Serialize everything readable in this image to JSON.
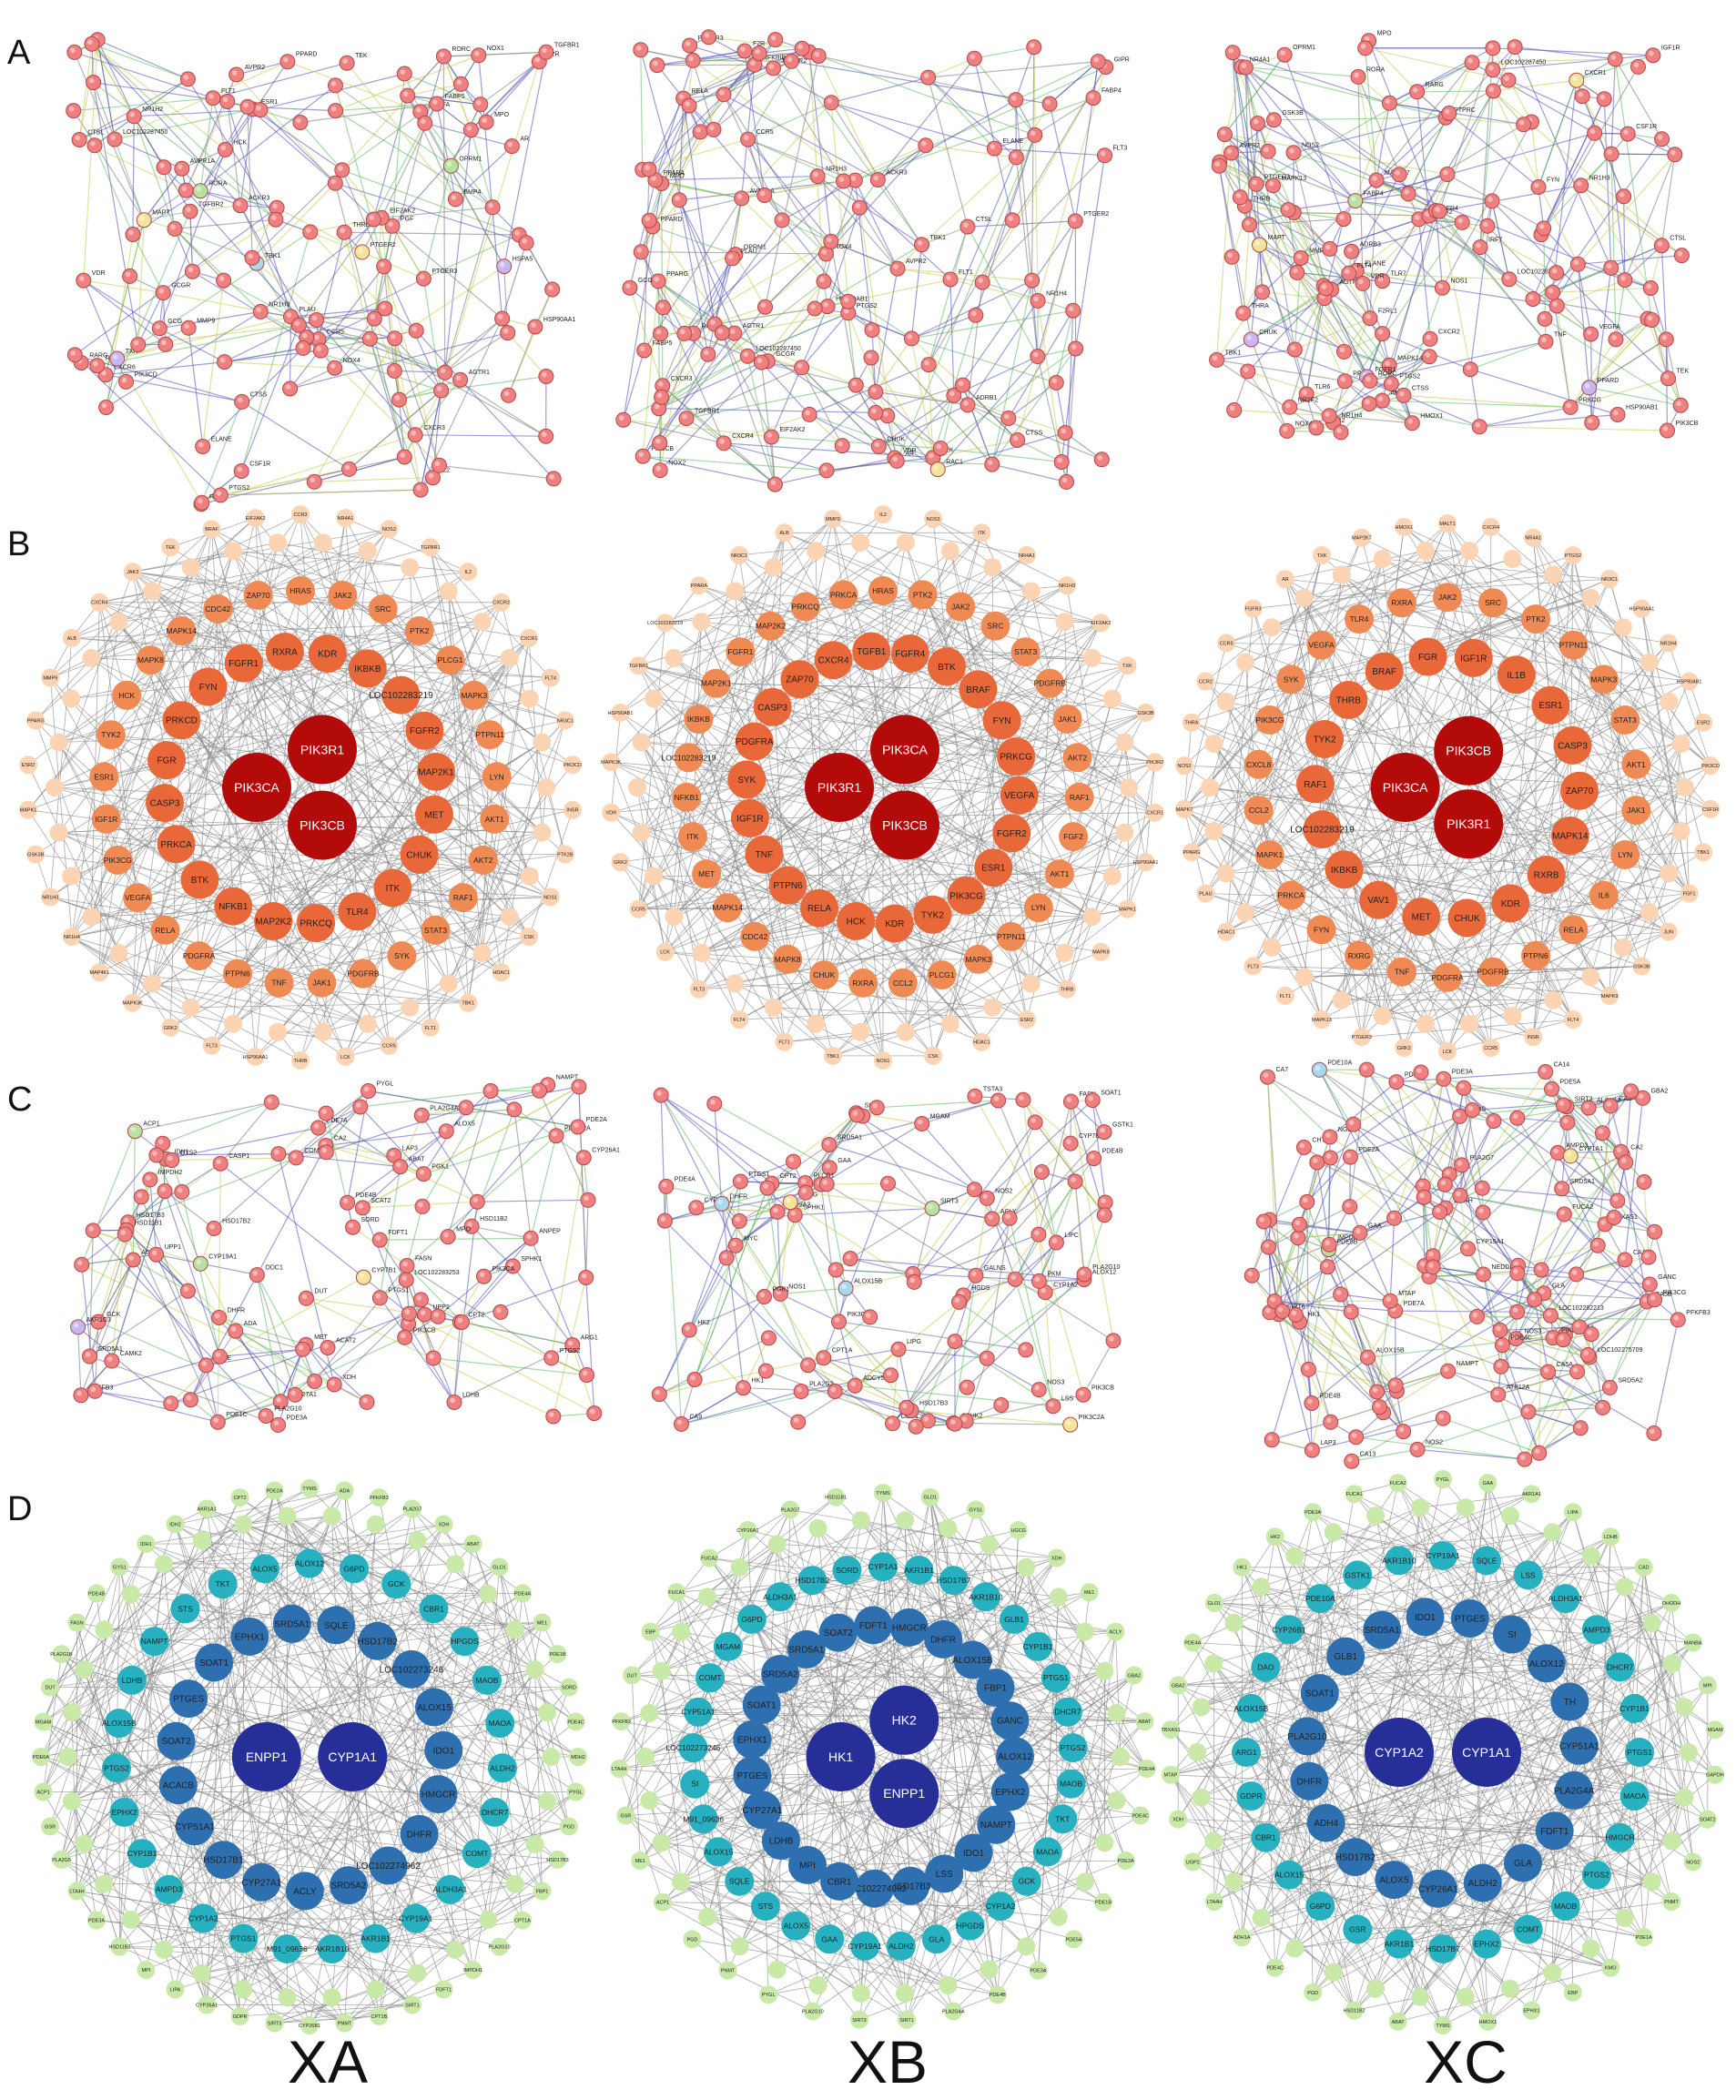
{
  "panels": {
    "A": {
      "letter": "A",
      "XA": {
        "labels": [
          "AVPR1A",
          "AVPR2",
          "CXCR3",
          "CXCR6",
          "LOC102287450",
          "OPRM1",
          "ACKR3",
          "CCR5",
          "TBK1",
          "PGF",
          "PIK3CD",
          "RORC",
          "FLT1",
          "TEK",
          "CSF1R",
          "AGTR1",
          "F2R",
          "CTSS",
          "CTSL",
          "MPO",
          "ELANE",
          "IL2",
          "VEGFA",
          "PLAU",
          "THRB",
          "MMP9",
          "PPARD",
          "FABP5",
          "RARG",
          "NR1H3",
          "RXRG",
          "NR1H2",
          "VDR",
          "RORA",
          "PTGER3",
          "GCGR",
          "GCG",
          "ESR1",
          "RAC1",
          "TGFBR1",
          "TGFBR2",
          "BMP4",
          "PTGS2",
          "NOX4",
          "NOX1",
          "EIF2AK2",
          "MAPT",
          "HSPA5",
          "HSP90AA1",
          "AR",
          "PTGER2",
          "TXK",
          "HCK"
        ]
      },
      "XB": {
        "labels": [
          "AVPR1A",
          "AVPR2",
          "ADRB1",
          "LOC102287450",
          "CXCR4",
          "OPRM1",
          "CXCR3",
          "CCR5",
          "AGTR1",
          "F2R",
          "NOX4",
          "CTSS",
          "CTSL",
          "ELANE",
          "MPO",
          "NR1H4",
          "ACKR3",
          "TGFBR1",
          "TGFBR2",
          "TEK",
          "PPARG",
          "PTGS2",
          "FABP4",
          "PLAU",
          "RARB",
          "VDR",
          "PPARD",
          "NFKBIB",
          "TBK1",
          "PPARA",
          "FABP5",
          "PTGER3",
          "PTGER2",
          "GIPR",
          "GCG",
          "GCGR",
          "HSP90AB1",
          "AR",
          "RAC1",
          "NOX2",
          "NR1H3",
          "EIF2AK2",
          "FLT3",
          "FLT1",
          "RELA",
          "CHUK",
          "PIK3CB"
        ]
      },
      "XC": {
        "labels": [
          "AGTR1",
          "OPRM1",
          "AVPR2",
          "ADRB3",
          "F2RL1",
          "LOC102287450",
          "CXCR1",
          "CXCR2",
          "PTGS2",
          "PTGER2",
          "PTGER3",
          "TLR6",
          "TLR7",
          "NOX4",
          "HMOX1",
          "CHUK",
          "TBK1",
          "TNF",
          "ELANE",
          "NR0B2",
          "MPO",
          "FABP4",
          "RARG",
          "PPARD",
          "VDR",
          "NR1H4",
          "NR1H3",
          "MAPK14",
          "MAPK13",
          "MAP2K7",
          "MAPT",
          "GSK3B",
          "NOS1",
          "NOS2",
          "HSP90AB1",
          "PRKCG",
          "AR",
          "PPARA",
          "NR2F2",
          "MMP9",
          "THRB",
          "THRA",
          "FGFR4",
          "FGFR1",
          "LOC102283219",
          "IRF7",
          "NR4A1",
          "RORA",
          "RORC",
          "CTSL",
          "CTSS",
          "VEGFA",
          "CSF1R",
          "IGF1R",
          "FLT4",
          "TEK",
          "PTPRC",
          "PIK3CB",
          "FYN"
        ]
      }
    },
    "B": {
      "letter": "B",
      "XA": {
        "hubs": [
          "PIK3CA",
          "PIK3R1",
          "PIK3CB"
        ],
        "mid": [
          "HRAS",
          "JAK2",
          "SRC",
          "PTK2",
          "PLCG1",
          "MAPK3",
          "PTPN11",
          "LYN",
          "AKT1",
          "AKT2",
          "RAF1",
          "STAT3",
          "SYK",
          "PDGFRB",
          "JAK1",
          "TNF",
          "PTPN6",
          "PDGFRA",
          "RELA",
          "VEGFA",
          "PIK3CG",
          "IGF1R",
          "ESR1",
          "TYK2",
          "HCK",
          "MAPK8",
          "MAPK14",
          "CDC42",
          "ZAP70",
          "KDR",
          "IKBKB",
          "LOC102283219",
          "FGFR2",
          "MAP2K1",
          "MET",
          "CHUK",
          "ITK",
          "TLR4",
          "PRKCQ",
          "MAP2K2",
          "NFKB1",
          "BTK",
          "PRKCA",
          "CASP3",
          "FGR",
          "PRKCD",
          "FYN",
          "FGFR1",
          "RXRA"
        ],
        "outer": [
          "CCR3",
          "NR4A1",
          "NOS2",
          "TGFBR1",
          "IL2",
          "CXCR2",
          "CXCR1",
          "FLT4",
          "NR3C1",
          "PIK3CD",
          "INSR",
          "PTK2B",
          "NOS1",
          "CSK",
          "HDAC1",
          "TBK1",
          "FLT1",
          "CCR5",
          "LCK",
          "THRB",
          "HSP90AA1",
          "FLT3",
          "GRK2",
          "MAPK3K",
          "MAP4K1",
          "NR1H4",
          "NR1H3",
          "GSK3B",
          "MAPK1",
          "ESR2",
          "PPARG",
          "MMP9",
          "ALB",
          "CXCR4",
          "JAK3",
          "TEK",
          "BRAF",
          "EIF2AK2"
        ]
      },
      "XB": {
        "hubs": [
          "PIK3R1",
          "PIK3CA",
          "PIK3CB"
        ],
        "mid": [
          "HRAS",
          "PTK2",
          "JAK2",
          "SRC",
          "STAT3",
          "PDGFRB",
          "JAK1",
          "AKT2",
          "RAF1",
          "FGF2",
          "AKT1",
          "LYN",
          "PTPN11",
          "MAPK3",
          "PLCG1",
          "CCL2",
          "RXRA",
          "CHUK",
          "MAPK8",
          "CDC42",
          "MAPK14",
          "MET",
          "ITK",
          "NFKB1",
          "LOC102283219",
          "IKBKB",
          "MAP2K1",
          "FGFR1",
          "MAP2K2",
          "PRKCQ",
          "PRKCA",
          "FGFR4",
          "BTK",
          "BRAF",
          "FYN",
          "PRKCG",
          "VEGFA",
          "FGFR2",
          "ESR1",
          "PIK3CG",
          "TYK2",
          "KDR",
          "HCK",
          "RELA",
          "PTPN6",
          "TNF",
          "IGF1R",
          "SYK",
          "PDGFRA",
          "CASP3",
          "ZAP70",
          "CXCR4",
          "TGFB1"
        ],
        "outer": [
          "IL2",
          "NOS3",
          "ITK",
          "NR4A1",
          "NR1H3",
          "EIF2AK2",
          "TXK",
          "GSK3B",
          "PIK3R2",
          "CXCR1",
          "HSP90AA1",
          "MAPK1",
          "MAPK9",
          "THRB",
          "ESR2",
          "HDAC1",
          "CSK",
          "NOS1",
          "TBK1",
          "FLT1",
          "FLT4",
          "FLT3",
          "LCK",
          "CCR5",
          "GRK2",
          "VDR",
          "MAPK3K",
          "HSP90AB1",
          "TGFBR1",
          "LOC102283219",
          "PPARA",
          "NR3C1",
          "ALB",
          "MMP9"
        ]
      },
      "XC": {
        "hubs": [
          "PIK3CA",
          "PIK3CB",
          "PIK3R1"
        ],
        "mid": [
          "JAK2",
          "SRC",
          "PTK2",
          "PTPN11",
          "MAPK3",
          "STAT3",
          "AKT1",
          "JAK1",
          "LYN",
          "IL6",
          "RELA",
          "PTPN6",
          "PDGFRB",
          "PDGFRA",
          "TNF",
          "RXRG",
          "FYN",
          "PRKCA",
          "MAPK1",
          "CCL2",
          "CXCL8",
          "PIK3CG",
          "SYK",
          "VEGFA",
          "TLR4",
          "RXRA",
          "IGF1R",
          "IL1B",
          "ESR1",
          "CASP3",
          "ZAP70",
          "MAPK14",
          "RXRB",
          "KDR",
          "CHUK",
          "MET",
          "VAV1",
          "IKBKB",
          "LOC102283219",
          "RAF1",
          "TYK2",
          "THRB",
          "BRAF",
          "FGR"
        ],
        "outer": [
          "MALT1",
          "CXCR4",
          "NR4A1",
          "PTGS2",
          "NR3C1",
          "HSP90AA1",
          "NR1H4",
          "HSP90AB1",
          "ESR2",
          "PIK3CD",
          "CSF1R",
          "TBK1",
          "FGF1",
          "JUN",
          "GSK3B",
          "MAPK9",
          "FLT4",
          "INSR",
          "CCR5",
          "LCK",
          "GRK2",
          "PTGER3",
          "MAPK13",
          "FLT1",
          "FLT3",
          "HDAC1",
          "PLAU",
          "PPARG",
          "MAPK7",
          "NOS2",
          "THRA",
          "CCR2",
          "CCR5",
          "FGFR3",
          "AR",
          "TXK",
          "MAP2K7",
          "HMOX1"
        ]
      }
    },
    "C": {
      "letter": "C",
      "XA": {
        "labels": [
          "CYP27A1",
          "DUT",
          "CYP51A1",
          "ACAT2",
          "SRD5A1",
          "HSD17B3",
          "HSD17B2",
          "SQLE",
          "FDFT1",
          "PFKFB3",
          "LDHB",
          "IDH1",
          "MET",
          "ACLY",
          "FASN",
          "CPT2",
          "SCAT2",
          "SORD",
          "PGK1",
          "ARG1",
          "UPP1",
          "UPP2",
          "CAMK2",
          "CA2",
          "LOC102283253",
          "SPHK1",
          "CASP1",
          "ADA",
          "ODC1",
          "PDE7A",
          "CYP7B1",
          "CYP26A1",
          "LAP3",
          "ANPEP",
          "ALOX5",
          "PLA2G10",
          "PLA2G4A",
          "PTGS1",
          "PTGS2",
          "HSD11B1",
          "HSD11B2",
          "CYP19A1",
          "XDH",
          "COMT",
          "DHFR",
          "GCK",
          "NAMPT",
          "MPO",
          "PIK3C2A",
          "PIK3CA",
          "PIK3CB",
          "PDE4B",
          "PDE2A",
          "PDE3A",
          "PDE1C",
          "GYS2",
          "PYGL",
          "ACP1",
          "ABAT",
          "AKR1C3",
          "IMPDH2"
        ]
      },
      "XB": {
        "labels": [
          "SIRT2",
          "SIRT3",
          "PDE4B",
          "PDE4A",
          "ALOX15B",
          "ALOX12",
          "PLA2G10",
          "PLA2G3",
          "CA9",
          "MYC",
          "LIPG",
          "LIPC",
          "SPHK1",
          "SPHK2",
          "ADCY5",
          "CYP19A1",
          "CYP1A2",
          "HGDS",
          "PTGS1",
          "GALNS",
          "DHFR",
          "HK1",
          "HK2",
          "MGAM",
          "NOS2",
          "SRD5A2",
          "SRD5A1",
          "GAA",
          "PKM",
          "PLCG1",
          "PIK3C2A",
          "PIK3CB",
          "PIK3CA",
          "NOS1",
          "NOS3",
          "ODC1",
          "CPT2",
          "CPT1A",
          "CYP7B1",
          "FASN",
          "ACLY",
          "SOAT1",
          "LSS",
          "PGK1",
          "HSD17B3",
          "GSTK1",
          "UGCG",
          "TSTA3"
        ]
      },
      "XC": {
        "labels": [
          "PLA2G7",
          "ALOX12",
          "ALOX15B",
          "ATP12A",
          "TBXAS1",
          "LOC102275709",
          "NOS3",
          "NOS2",
          "NEDDP",
          "PDE6A",
          "PDE7A",
          "PDE4C",
          "PDE10A",
          "PDE8B",
          "PDE2A",
          "PDE3A",
          "PDE4B",
          "SRD5A2",
          "SRD5A1",
          "LTA4H",
          "CHTF18",
          "SIRT3",
          "SIRT6",
          "PDE5A",
          "CAD",
          "AMPD3",
          "TYMS",
          "NAMPT",
          "MTAP",
          "IMPDH2",
          "GAA",
          "CA5B",
          "NGLL",
          "CA5A",
          "PFKFB3",
          "CA14",
          "CA12",
          "LAP3",
          "GANC",
          "FUCA1",
          "FUCA2",
          "GLA",
          "CA13",
          "CA7",
          "CA2",
          "PIK3CG",
          "PIK3CB",
          "LOC102282213",
          "HK1",
          "GBA2",
          "CYP1A1",
          "CYP19A1"
        ]
      }
    },
    "D": {
      "letter": "D",
      "XA": {
        "hubs": [
          "ENPP1",
          "CYP1A1"
        ],
        "mid": [
          "ALOX12",
          "G6PD",
          "GCK",
          "CBR1",
          "HPGDS",
          "MAOB",
          "MAOA",
          "ALDH2",
          "DHCR7",
          "COMT",
          "ALDH3A1",
          "CYP19A1",
          "AKR1B1",
          "AKR1B10",
          "M91_09636",
          "PTGS1",
          "CYP1A2",
          "AMPD3",
          "CYP1B1",
          "EPHX2",
          "PTGS2",
          "ALOX15B",
          "LDHB",
          "NAMPT",
          "STS",
          "TKT",
          "ALOX5",
          "SQLE",
          "HSD17B2",
          "LOC102273246",
          "ALOX15",
          "IDO1",
          "HMGCR",
          "DHFR",
          "LOC102274962",
          "SRD5A2",
          "ACLY",
          "CYP27A1",
          "HSD17B1",
          "CYP51A1",
          "ACACB",
          "SOAT2",
          "PTGES",
          "SOAT1",
          "EPHX1",
          "SRD5A1"
        ],
        "outer": [
          "TYMS",
          "ADA",
          "PFKFB3",
          "PLA2G7",
          "XDH",
          "ABAT",
          "GLO1",
          "PDE4A",
          "ME1",
          "PDE1B",
          "SORD",
          "PDE4C",
          "MDH2",
          "PYGL",
          "PGD",
          "HSD17B3",
          "FBP1",
          "CPT1A",
          "PLA2G10",
          "IMPDH1",
          "FDFT1",
          "SIRT1",
          "CPT1B",
          "PNMT",
          "CYP26B1",
          "SIRT3",
          "GDPR",
          "CYP26A1",
          "LIPA",
          "MPI",
          "HSD11B2",
          "PDE3A",
          "LTA4H",
          "PLA2G5",
          "GSR",
          "ACP1",
          "PDE6A",
          "MGAM",
          "DUT",
          "PLA2G1B",
          "FASN",
          "PDE4B",
          "GYS1",
          "IDH1",
          "IDH2",
          "AKR1A1",
          "CPT2",
          "PDE2A"
        ]
      },
      "XB": {
        "hubs": [
          "HK1",
          "HK2",
          "ENPP1"
        ],
        "mid": [
          "CYP1A1",
          "AKR1B1",
          "HSD17B7",
          "AKR1B10",
          "GLB1",
          "CYP1B1",
          "PTGS1",
          "DHCR7",
          "PTGS2",
          "MAOB",
          "TKT",
          "MAOA",
          "GCK",
          "CYP1A2",
          "HPGDS",
          "GLA",
          "ALDH2",
          "CYP19A1",
          "GAA",
          "ALOX5",
          "STS",
          "SQLE",
          "ALOX15",
          "M91_09636",
          "SI",
          "LOC102273246",
          "CYP51A1",
          "COMT",
          "MGAM",
          "G6PD",
          "ALDH3A1",
          "HSD17B2",
          "SORD",
          "HMGCR",
          "DHFR",
          "ALOX15B",
          "FBP1",
          "GANC",
          "ALOX12",
          "EPHX2",
          "NAMPT",
          "IDO1",
          "LSS",
          "HSD17B3",
          "LOC102274962",
          "CBR1",
          "MPI",
          "LDHB",
          "CYP27A1",
          "PTGES",
          "EPHX1",
          "SOAT1",
          "SRD5A2",
          "SRD5A1",
          "SOAT2",
          "FDFT1"
        ],
        "outer": [
          "TYMS",
          "GLO1",
          "GYS1",
          "UGCG",
          "XDH",
          "ME1",
          "ACLY",
          "GBA2",
          "ABAT",
          "PDE4A",
          "PDE4C",
          "PDE2A",
          "PDE1B",
          "PDE5A",
          "PDE3A",
          "PDE4B",
          "PLA2G4A",
          "SIRT1",
          "SIRT3",
          "PLA2G10",
          "PYGL",
          "PNMT",
          "PGD",
          "ACP1",
          "ME1",
          "GSR",
          "LTA4H",
          "PFKFB3",
          "DUT",
          "EBP",
          "FUCA1",
          "FUCA2",
          "CYP26A1",
          "PLA2G7",
          "HSD11B1"
        ]
      },
      "XC": {
        "hubs": [
          "CYP1A2",
          "CYP1A1"
        ],
        "mid": [
          "CYP19A1",
          "SQLE",
          "LSS",
          "ALDH3A1",
          "AMPD3",
          "DHCR7",
          "CYP1B1",
          "PTGS1",
          "MAOA",
          "HMGCR",
          "PTGS2",
          "MAOB",
          "COMT",
          "EPHX2",
          "HSD17B7",
          "AKR1B1",
          "GSR",
          "G6PD",
          "ALOX15",
          "CBR1",
          "GDPR",
          "ARG1",
          "ALOX15B",
          "DAO",
          "CYP26B1",
          "PDE10A",
          "GSTK1",
          "AKR1B10",
          "PTGES",
          "SI",
          "ALOX12",
          "TH",
          "CYP51A1",
          "PLA2G4A",
          "FDFT1",
          "GLA",
          "ALDH2",
          "CYP26A1",
          "ALOX5",
          "HSD17B2",
          "ADH4",
          "DHFR",
          "PLA2G10",
          "SOAT1",
          "GLB1",
          "SRD5A1",
          "IDO1"
        ],
        "outer": [
          "PYGL",
          "GAA",
          "AKR1A1",
          "LIPA",
          "LDHB",
          "CAD",
          "DHODH",
          "MANBA",
          "MPI",
          "MGAM",
          "GAPDH",
          "SOAT2",
          "NOS2",
          "PNMT",
          "PDE1A",
          "KMO",
          "EBP",
          "EPHX1",
          "HMOX1",
          "TYMS",
          "ABAT",
          "HSD11B2",
          "PGD",
          "PDE4C",
          "ADH1A",
          "LTA4H",
          "UGP2",
          "XDH",
          "MTAP",
          "TBXAS1",
          "GBA2",
          "PDE4A",
          "GLO1",
          "HK1",
          "HK2",
          "PDE3A",
          "FUCA1",
          "FUCA2"
        ]
      }
    }
  },
  "columns": [
    "XA",
    "XB",
    "XC"
  ],
  "colors": {
    "string_node": "#f08080",
    "string_node_stroke": "#b04848",
    "edge": "#777777",
    "edge_purple": "#5050b8",
    "edge_green": "#5cb85c",
    "edge_yellow": "#c8c850",
    "B_hub": "#b30a0a",
    "B_mid": "#f08a55",
    "B_outer": "#fcd4b4",
    "D_hub": "#262f97",
    "D_mid": "#27b0bf",
    "D_outer": "#c9e9a8"
  }
}
